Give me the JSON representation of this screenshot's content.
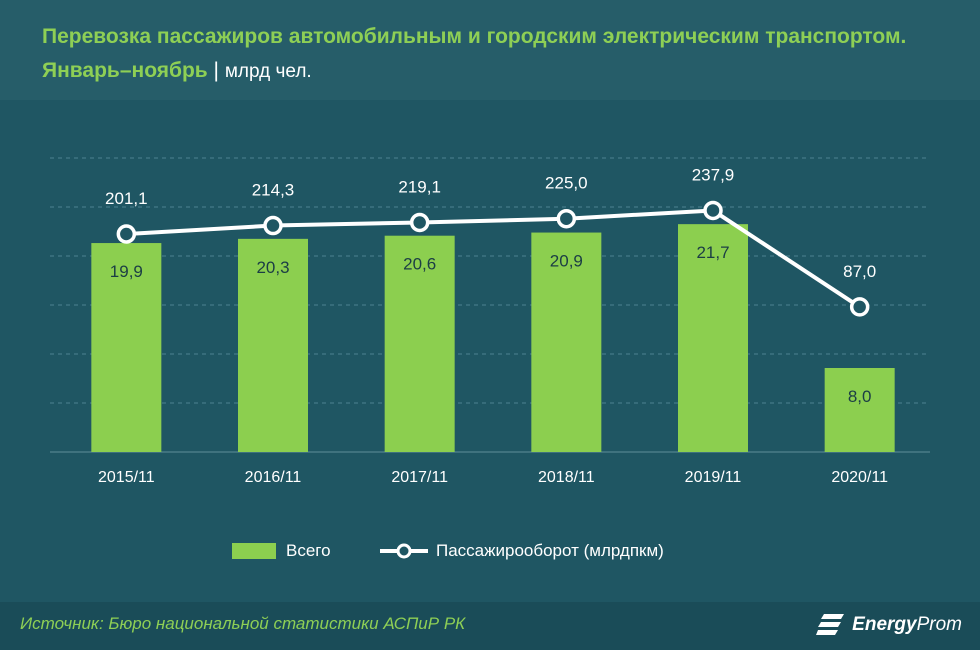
{
  "header": {
    "title": "Перевозка пассажиров автомобильным и городским электрическим транспортом. Январь–ноябрь",
    "separator": "|",
    "unit": "млрд чел."
  },
  "colors": {
    "background": "#1f5663",
    "bar": "#8ccf4f",
    "line": "#ffffff",
    "title": "#8ecf55"
  },
  "chart_data": {
    "type": "bar",
    "categories": [
      "2015/11",
      "2016/11",
      "2017/11",
      "2018/11",
      "2019/11",
      "2020/11"
    ],
    "series": [
      {
        "name": "Всего",
        "type": "bar",
        "values": [
          19.9,
          20.3,
          20.6,
          20.9,
          21.7,
          8.0
        ],
        "labels": [
          "19,9",
          "20,3",
          "20,6",
          "20,9",
          "21,7",
          "8,0"
        ]
      },
      {
        "name": "Пассажирооборот (млрдпкм)",
        "type": "line",
        "values": [
          201.1,
          214.3,
          219.1,
          225.0,
          237.9,
          87.0
        ],
        "labels": [
          "201,1",
          "214,3",
          "219,1",
          "225,0",
          "237,9",
          "87,0"
        ]
      }
    ],
    "bar_ylim": [
      0,
      28
    ],
    "line_ylim": [
      -140,
      320
    ],
    "grid": true,
    "legend_position": "bottom"
  },
  "legend": {
    "bar_label": "Всего",
    "line_label": "Пассажирооборот (млрдпкм)"
  },
  "footer": {
    "source": "Источник: Бюро национальной  статистики АСПиР РК",
    "logo_bold": "Energy",
    "logo_light": "Prom"
  }
}
